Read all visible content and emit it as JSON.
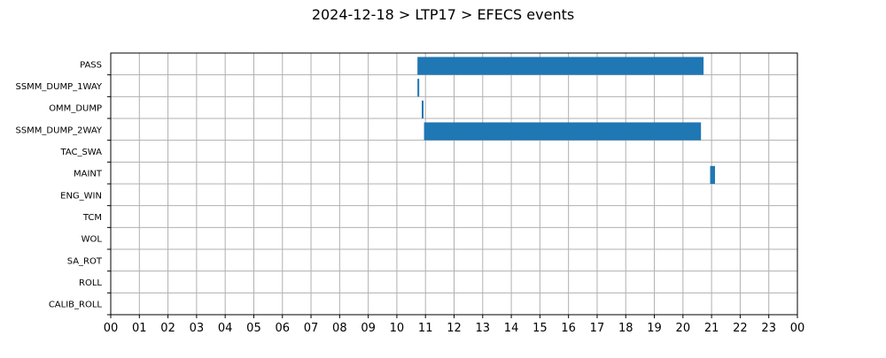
{
  "chart_data": {
    "type": "bar",
    "orientation": "horizontal",
    "title": "2024-12-18 > LTP17 > EFECS events",
    "xlabel": "",
    "ylabel": "",
    "xlim": [
      0,
      24
    ],
    "grid": true,
    "bar_color": "#1f77b4",
    "categories": [
      "PASS",
      "SSMM_DUMP_1WAY",
      "OMM_DUMP",
      "SSMM_DUMP_2WAY",
      "TAC_SWA",
      "MAINT",
      "ENG_WIN",
      "TCM",
      "WOL",
      "SA_ROT",
      "ROLL",
      "CALIB_ROLL"
    ],
    "x_tick_labels": [
      "00",
      "01",
      "02",
      "03",
      "04",
      "05",
      "06",
      "07",
      "08",
      "09",
      "10",
      "11",
      "12",
      "13",
      "14",
      "15",
      "16",
      "17",
      "18",
      "19",
      "20",
      "21",
      "22",
      "23",
      "00"
    ],
    "events": [
      {
        "category": "PASS",
        "start": 10.72,
        "end": 20.72
      },
      {
        "category": "SSMM_DUMP_1WAY",
        "start": 10.72,
        "end": 10.75
      },
      {
        "category": "OMM_DUMP",
        "start": 10.87,
        "end": 10.93
      },
      {
        "category": "SSMM_DUMP_2WAY",
        "start": 10.95,
        "end": 20.63
      },
      {
        "category": "MAINT",
        "start": 20.95,
        "end": 21.12
      }
    ]
  }
}
